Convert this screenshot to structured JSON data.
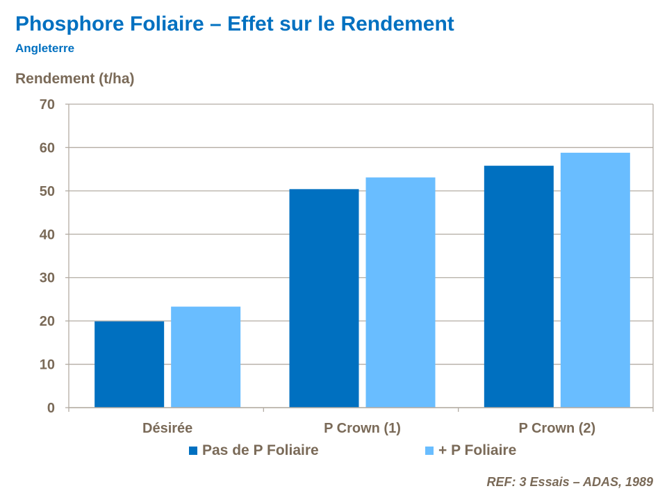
{
  "header": {
    "title": "Phosphore Foliaire – Effet sur le Rendement",
    "subtitle": "Angleterre"
  },
  "footer": {
    "ref": "REF: 3 Essais – ADAS, 1989"
  },
  "chart_data": {
    "type": "bar",
    "title": "",
    "ylabel": "Rendement (t/ha)",
    "xlabel": "",
    "categories": [
      "Désirée",
      "P Crown (1)",
      "P Crown (2)"
    ],
    "series": [
      {
        "name": "Pas de P Foliaire",
        "color": "#0070C0",
        "values": [
          19.9,
          50.4,
          55.8
        ]
      },
      {
        "name": "+ P Foliaire",
        "color": "#69BDFF",
        "values": [
          23.3,
          53.1,
          58.8
        ]
      }
    ],
    "ylim": [
      0,
      70
    ],
    "yticks": [
      "0",
      "10",
      "20",
      "30",
      "40",
      "50",
      "60",
      "70"
    ],
    "grid": true,
    "legend_position": "bottom"
  }
}
